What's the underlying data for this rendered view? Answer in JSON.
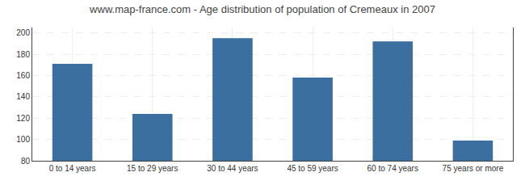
{
  "chart_data": {
    "type": "bar",
    "title": "www.map-france.com - Age distribution of population of Cremeaux in 2007",
    "categories": [
      "0 to 14 years",
      "15 to 29 years",
      "30 to 44 years",
      "45 to 59 years",
      "60 to 74 years",
      "75 years or more"
    ],
    "values": [
      171,
      124,
      195,
      158,
      192,
      99
    ],
    "color": "#3a6f9f",
    "ylim": [
      80,
      205
    ],
    "yticks": [
      80,
      100,
      120,
      140,
      160,
      180,
      200
    ],
    "grid": true
  }
}
